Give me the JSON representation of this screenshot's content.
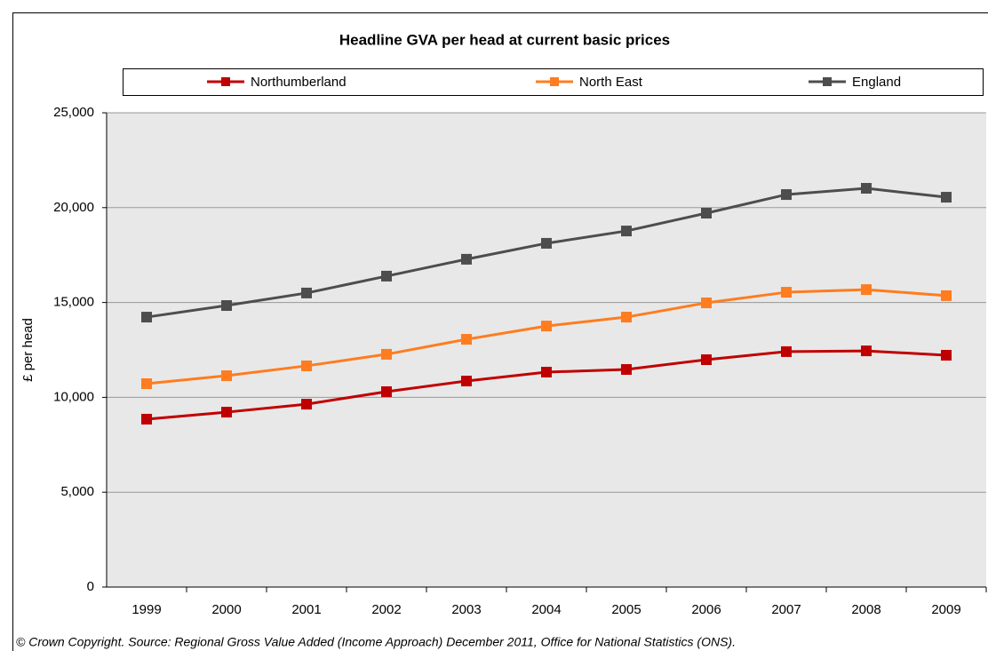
{
  "chart_data": {
    "type": "line",
    "title": "Headline GVA per head at current basic prices",
    "y_label": "£ per head",
    "source": "© Crown Copyright. Source: Regional Gross Value Added (Income Approach) December 2011, Office for National Statistics (ONS).",
    "categories": [
      "1999",
      "2000",
      "2001",
      "2002",
      "2003",
      "2004",
      "2005",
      "2006",
      "2007",
      "2008",
      "2009"
    ],
    "series": [
      {
        "name": "Northumberland",
        "color": "#c00000",
        "values": [
          8850,
          9220,
          9640,
          10300,
          10860,
          11330,
          11470,
          11985,
          12410,
          12450,
          12220
        ]
      },
      {
        "name": "North East",
        "color": "#ff7c1f",
        "values": [
          10720,
          11140,
          11660,
          12270,
          13060,
          13760,
          14230,
          14980,
          15540,
          15680,
          15360
        ]
      },
      {
        "name": "England",
        "color": "#4d4d4d",
        "values": [
          14230,
          14840,
          15500,
          16390,
          17280,
          18120,
          18770,
          19710,
          20690,
          21020,
          20550
        ]
      }
    ],
    "ylim": [
      0,
      25000
    ],
    "yticks": [
      0,
      {
        "value": 5000,
        "label": "5,000"
      },
      {
        "value": 10000,
        "label": "10,000"
      },
      {
        "value": 15000,
        "label": "15,000"
      },
      {
        "value": 20000,
        "label": "20,000"
      },
      {
        "value": 25000,
        "label": "25,000"
      }
    ],
    "grid": true,
    "legend": "top"
  }
}
